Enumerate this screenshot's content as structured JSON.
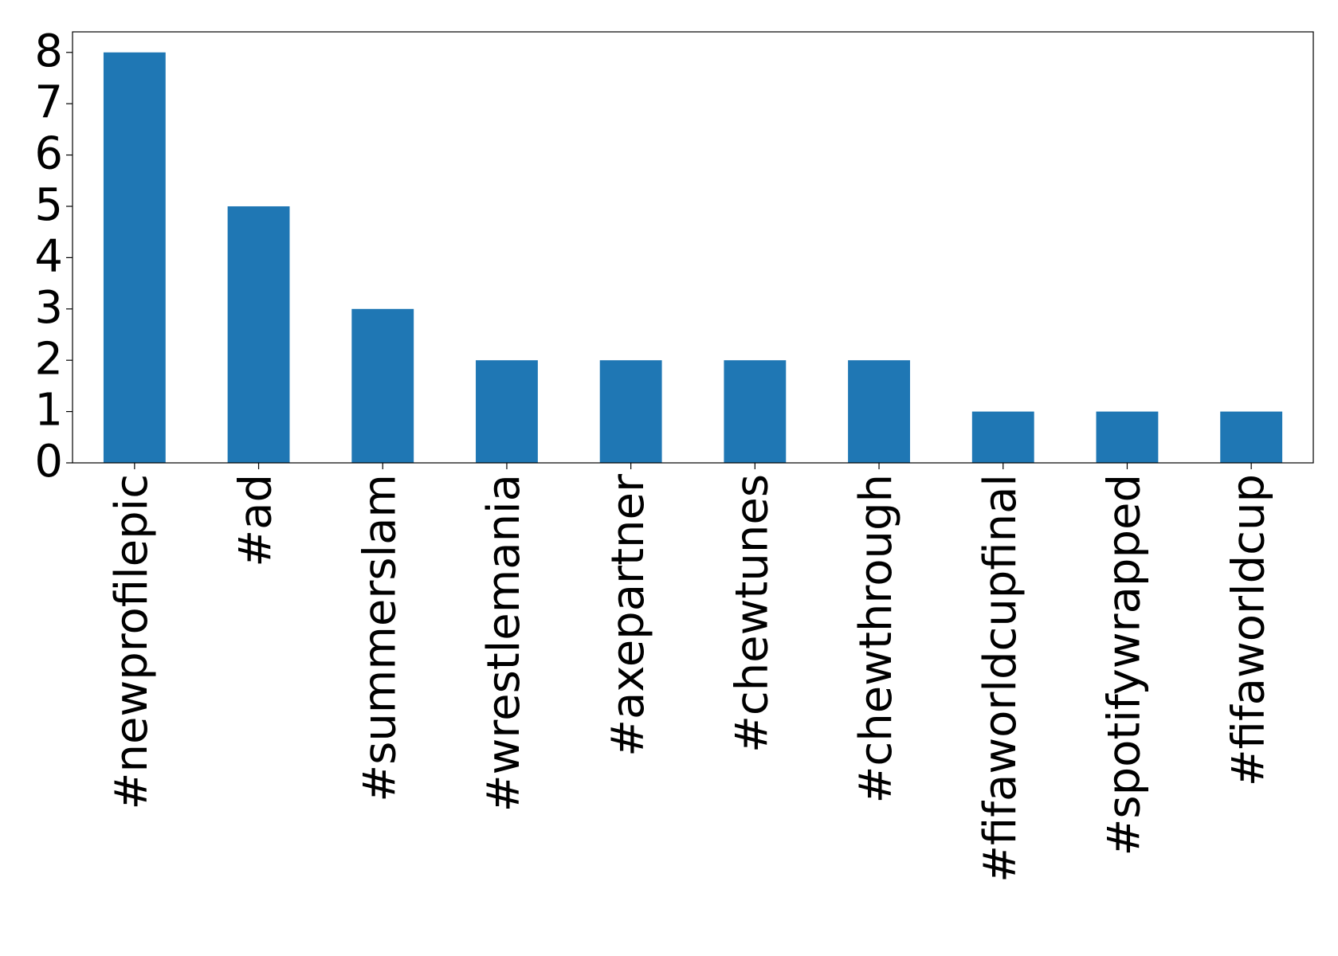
{
  "chart_data": {
    "type": "bar",
    "categories": [
      "#newprofilepic",
      "#ad",
      "#summerslam",
      "#wrestlemania",
      "#axepartner",
      "#chewtunes",
      "#chewthrough",
      "#fifaworldcupfinal",
      "#spotifywrapped",
      "#fifaworldcup"
    ],
    "values": [
      8,
      5,
      3,
      2,
      2,
      2,
      2,
      1,
      1,
      1
    ],
    "color": "#1f77b4",
    "ylim": [
      0,
      8.4
    ],
    "yticks": [
      0,
      1,
      2,
      3,
      4,
      5,
      6,
      7,
      8
    ],
    "grid": false
  }
}
